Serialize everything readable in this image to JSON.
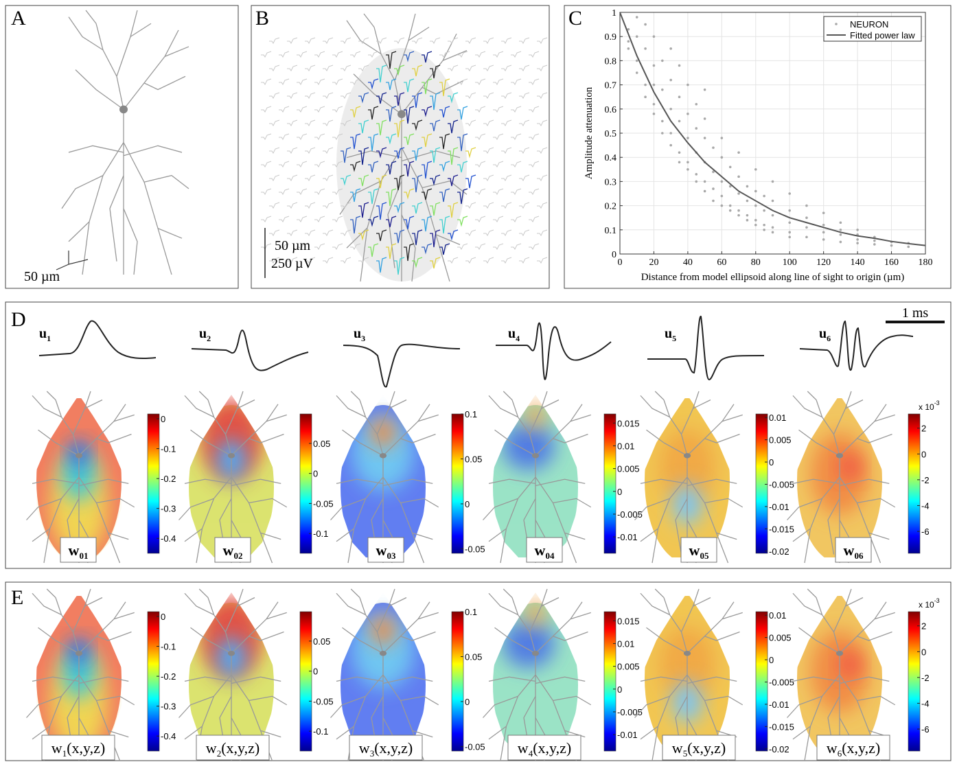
{
  "panels": {
    "A": {
      "letter": "A",
      "scale": "50 µm"
    },
    "B": {
      "letter": "B",
      "scale_length": "50 µm",
      "scale_voltage": "250 µV"
    },
    "C": {
      "letter": "C"
    },
    "D": {
      "letter": "D",
      "time_scale": "1 ms",
      "waveforms": [
        {
          "label": "u",
          "sub": "1"
        },
        {
          "label": "u",
          "sub": "2"
        },
        {
          "label": "u",
          "sub": "3"
        },
        {
          "label": "u",
          "sub": "4"
        },
        {
          "label": "u",
          "sub": "5"
        },
        {
          "label": "u",
          "sub": "6"
        }
      ],
      "maps": [
        {
          "label": "w",
          "sub": "01",
          "colorbar": {
            "lim": [
              -0.45,
              0.016
            ],
            "ticks": [
              0,
              -0.1,
              -0.2,
              -0.3,
              -0.4
            ]
          }
        },
        {
          "label": "w",
          "sub": "02",
          "colorbar": {
            "lim": [
              -0.133,
              0.099
            ],
            "ticks": [
              0.05,
              0,
              -0.05,
              -0.1
            ]
          }
        },
        {
          "label": "w",
          "sub": "03",
          "colorbar": {
            "lim": [
              -0.055,
              0.1
            ],
            "ticks": [
              0.1,
              0.05,
              0,
              -0.05
            ]
          }
        },
        {
          "label": "w",
          "sub": "04",
          "colorbar": {
            "lim": [
              -0.0136,
              0.017
            ],
            "ticks": [
              0.015,
              0.01,
              0.005,
              0,
              -0.005,
              -0.01
            ]
          }
        },
        {
          "label": "w",
          "sub": "05",
          "colorbar": {
            "lim": [
              -0.0205,
              0.0108
            ],
            "ticks": [
              0.01,
              0.005,
              0,
              -0.005,
              -0.01,
              -0.015,
              -0.02
            ]
          }
        },
        {
          "label": "w",
          "sub": "06",
          "colorbar": {
            "lim": [
              -7.7,
              3.1
            ],
            "ticks": [
              2,
              0,
              -2,
              -4,
              -6
            ],
            "multiplier": "x 10",
            "exponent": "-3"
          }
        }
      ]
    },
    "E": {
      "letter": "E",
      "maps": [
        {
          "label": "w",
          "sub": "1",
          "suffix": "(x,y,z)",
          "colorbar": {
            "lim": [
              -0.45,
              0.016
            ],
            "ticks": [
              0,
              -0.1,
              -0.2,
              -0.3,
              -0.4
            ]
          }
        },
        {
          "label": "w",
          "sub": "2",
          "suffix": "(x,y,z)",
          "colorbar": {
            "lim": [
              -0.133,
              0.099
            ],
            "ticks": [
              0.05,
              0,
              -0.05,
              -0.1
            ]
          }
        },
        {
          "label": "w",
          "sub": "3",
          "suffix": "(x,y,z)",
          "colorbar": {
            "lim": [
              -0.055,
              0.1
            ],
            "ticks": [
              0.1,
              0.05,
              0,
              -0.05
            ]
          }
        },
        {
          "label": "w",
          "sub": "4",
          "suffix": "(x,y,z)",
          "colorbar": {
            "lim": [
              -0.0136,
              0.017
            ],
            "ticks": [
              0.015,
              0.01,
              0.005,
              0,
              -0.005,
              -0.01
            ]
          }
        },
        {
          "label": "w",
          "sub": "5",
          "suffix": "(x,y,z)",
          "colorbar": {
            "lim": [
              -0.0205,
              0.0108
            ],
            "ticks": [
              0.01,
              0.005,
              0,
              -0.005,
              -0.01,
              -0.015,
              -0.02
            ]
          }
        },
        {
          "label": "w",
          "sub": "6",
          "suffix": "(x,y,z)",
          "colorbar": {
            "lim": [
              -7.7,
              3.1
            ],
            "ticks": [
              2,
              0,
              -2,
              -4,
              -6
            ],
            "multiplier": "x 10",
            "exponent": "-3"
          }
        }
      ]
    }
  },
  "chart_data": {
    "type": "scatter",
    "xlabel": "Distance from model ellipsoid along line of sight to origin (µm)",
    "ylabel": "Amplitude attenuation",
    "xlim": [
      0,
      180
    ],
    "xticks": [
      0,
      20,
      40,
      60,
      80,
      100,
      120,
      140,
      160,
      180
    ],
    "ylim": [
      0,
      1
    ],
    "yticks": [
      0,
      0.1,
      0.2,
      0.3,
      0.4,
      0.5,
      0.6,
      0.7,
      0.8,
      0.9,
      1
    ],
    "grid": true,
    "legend": "upper right",
    "series": [
      {
        "name": "NEURON",
        "type": "scatter",
        "color": "#a8a8a8",
        "x": [
          5,
          5,
          5,
          10,
          10,
          10,
          10,
          15,
          15,
          15,
          15,
          20,
          20,
          20,
          20,
          20,
          25,
          25,
          25,
          25,
          30,
          30,
          30,
          30,
          30,
          35,
          35,
          35,
          35,
          35,
          40,
          40,
          40,
          40,
          40,
          45,
          45,
          45,
          45,
          45,
          50,
          50,
          50,
          50,
          50,
          50,
          55,
          55,
          55,
          55,
          60,
          60,
          60,
          60,
          60,
          65,
          65,
          65,
          65,
          70,
          70,
          70,
          70,
          70,
          75,
          75,
          75,
          75,
          80,
          80,
          80,
          80,
          80,
          85,
          85,
          85,
          85,
          90,
          90,
          90,
          90,
          90,
          100,
          100,
          100,
          100,
          100,
          110,
          110,
          110,
          110,
          120,
          120,
          120,
          120,
          130,
          130,
          130,
          130,
          140,
          140,
          140,
          140,
          150,
          150,
          150,
          160,
          160,
          170,
          170
        ],
        "values": [
          0.93,
          0.85,
          0.88,
          0.98,
          0.8,
          0.75,
          0.9,
          0.7,
          0.85,
          0.65,
          0.95,
          0.62,
          0.7,
          0.78,
          0.9,
          0.58,
          0.55,
          0.68,
          0.8,
          0.5,
          0.5,
          0.6,
          0.72,
          0.45,
          0.85,
          0.42,
          0.55,
          0.65,
          0.38,
          0.78,
          0.38,
          0.48,
          0.58,
          0.7,
          0.35,
          0.33,
          0.42,
          0.52,
          0.62,
          0.3,
          0.3,
          0.38,
          0.48,
          0.56,
          0.26,
          0.68,
          0.27,
          0.34,
          0.44,
          0.22,
          0.24,
          0.3,
          0.4,
          0.48,
          0.2,
          0.2,
          0.28,
          0.36,
          0.18,
          0.18,
          0.25,
          0.32,
          0.42,
          0.16,
          0.16,
          0.22,
          0.28,
          0.14,
          0.14,
          0.2,
          0.26,
          0.35,
          0.12,
          0.12,
          0.18,
          0.24,
          0.1,
          0.11,
          0.16,
          0.22,
          0.3,
          0.09,
          0.09,
          0.13,
          0.18,
          0.25,
          0.07,
          0.07,
          0.11,
          0.15,
          0.2,
          0.06,
          0.09,
          0.12,
          0.17,
          0.05,
          0.08,
          0.1,
          0.13,
          0.045,
          0.06,
          0.08,
          0.1,
          0.04,
          0.055,
          0.07,
          0.035,
          0.05,
          0.03,
          0.045
        ]
      },
      {
        "name": "Fitted power law",
        "type": "line",
        "color": "#555555",
        "x": [
          0,
          10,
          20,
          30,
          40,
          50,
          60,
          70,
          80,
          90,
          100,
          110,
          120,
          130,
          140,
          150,
          160,
          170,
          180
        ],
        "values": [
          1,
          0.82,
          0.67,
          0.55,
          0.46,
          0.38,
          0.32,
          0.26,
          0.22,
          0.18,
          0.15,
          0.13,
          0.11,
          0.09,
          0.075,
          0.065,
          0.052,
          0.043,
          0.035
        ]
      }
    ]
  }
}
